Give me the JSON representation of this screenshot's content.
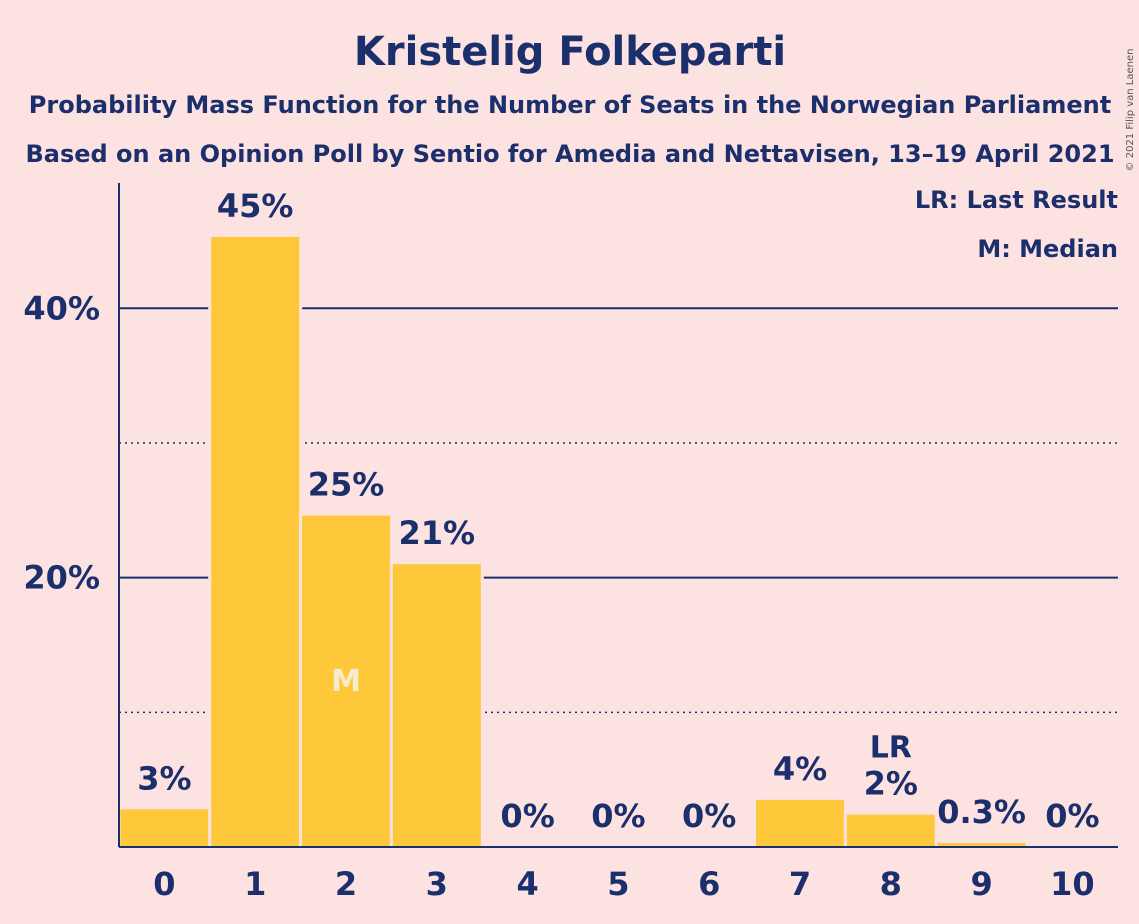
{
  "chart_data": {
    "type": "bar",
    "title": "Kristelig Folkeparti",
    "subtitle_1": "Probability Mass Function for the Number of Seats in the Norwegian Parliament",
    "subtitle_2": "Based on an Opinion Poll by Sentio for Amedia and Nettavisen, 13–19 April 2021",
    "categories": [
      "0",
      "1",
      "2",
      "3",
      "4",
      "5",
      "6",
      "7",
      "8",
      "9",
      "10"
    ],
    "values": [
      2.8,
      45.3,
      24.6,
      21.0,
      0,
      0,
      0,
      3.5,
      2.4,
      0.3,
      0
    ],
    "value_labels": [
      "3%",
      "45%",
      "25%",
      "21%",
      "0%",
      "0%",
      "0%",
      "4%",
      "2%",
      "0.3%",
      "0%"
    ],
    "ylim": [
      0,
      49.3
    ],
    "yticks": [
      {
        "value": 20,
        "label": "20%"
      },
      {
        "value": 40,
        "label": "40%"
      }
    ],
    "minor_gridlines": [
      10,
      30
    ],
    "grid": true,
    "median_seat": "2",
    "median_marker": "M",
    "last_result_seat": "8",
    "last_result_marker": "LR",
    "legend": {
      "position": "top-right",
      "entries": [
        "LR: Last Result",
        "M: Median"
      ]
    },
    "copyright": "© 2021 Filip van Laenen",
    "colors": {
      "background": "#fde2e2",
      "bar": "#ffc83a",
      "text": "#1a2f6b",
      "median_marker": "#f5ecd0"
    }
  }
}
